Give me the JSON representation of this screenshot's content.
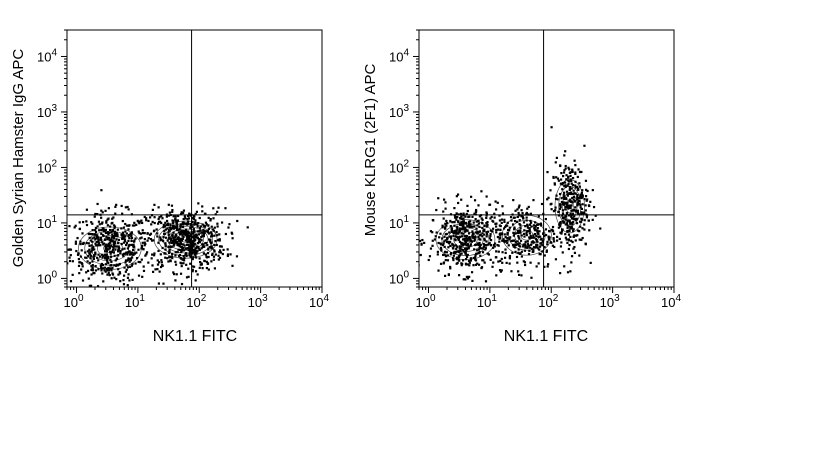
{
  "chart_data": [
    {
      "type": "scatter",
      "subtype": "flow-cytometry-contour-dot",
      "title": "",
      "xlabel": "NK1.1 FITC",
      "ylabel": "Golden Syrian Hamster IgG APC",
      "xscale": "log",
      "yscale": "log",
      "xlim": [
        0.7,
        10000
      ],
      "ylim": [
        0.7,
        30000
      ],
      "x_ticks": [
        {
          "base": "10",
          "exp": "0"
        },
        {
          "base": "10",
          "exp": "1"
        },
        {
          "base": "10",
          "exp": "2"
        },
        {
          "base": "10",
          "exp": "3"
        },
        {
          "base": "10",
          "exp": "4"
        }
      ],
      "y_ticks": [
        {
          "base": "10",
          "exp": "0"
        },
        {
          "base": "10",
          "exp": "1"
        },
        {
          "base": "10",
          "exp": "2"
        },
        {
          "base": "10",
          "exp": "3"
        },
        {
          "base": "10",
          "exp": "4"
        }
      ],
      "quadrant_gate": {
        "x": 75,
        "y": 14
      },
      "populations": [
        {
          "name": "",
          "x_center": 3.5,
          "y_center": 3.5,
          "x_spread": 0.32,
          "y_spread": 0.32,
          "share": 0.45
        },
        {
          "name": "",
          "x_center": 60,
          "y_center": 5,
          "x_spread": 0.32,
          "y_spread": 0.28,
          "share": 0.55
        }
      ],
      "grid": false,
      "legend": "none"
    },
    {
      "type": "scatter",
      "subtype": "flow-cytometry-contour-dot",
      "title": "",
      "xlabel": "NK1.1 FITC",
      "ylabel": "Mouse KLRG1 (2F1) APC",
      "xscale": "log",
      "yscale": "log",
      "xlim": [
        0.7,
        10000
      ],
      "ylim": [
        0.7,
        30000
      ],
      "x_ticks": [
        {
          "base": "10",
          "exp": "0"
        },
        {
          "base": "10",
          "exp": "1"
        },
        {
          "base": "10",
          "exp": "2"
        },
        {
          "base": "10",
          "exp": "3"
        },
        {
          "base": "10",
          "exp": "4"
        }
      ],
      "y_ticks": [
        {
          "base": "10",
          "exp": "0"
        },
        {
          "base": "10",
          "exp": "1"
        },
        {
          "base": "10",
          "exp": "2"
        },
        {
          "base": "10",
          "exp": "3"
        },
        {
          "base": "10",
          "exp": "4"
        }
      ],
      "quadrant_gate": {
        "x": 75,
        "y": 14
      },
      "populations": [
        {
          "name": "",
          "x_center": 4,
          "y_center": 5,
          "x_spread": 0.3,
          "y_spread": 0.3,
          "share": 0.45
        },
        {
          "name": "",
          "x_center": 40,
          "y_center": 6,
          "x_spread": 0.25,
          "y_spread": 0.3,
          "share": 0.25
        },
        {
          "name": "",
          "x_center": 200,
          "y_center": 20,
          "x_spread": 0.15,
          "y_spread": 0.4,
          "share": 0.3
        }
      ],
      "grid": false,
      "legend": "none"
    }
  ]
}
